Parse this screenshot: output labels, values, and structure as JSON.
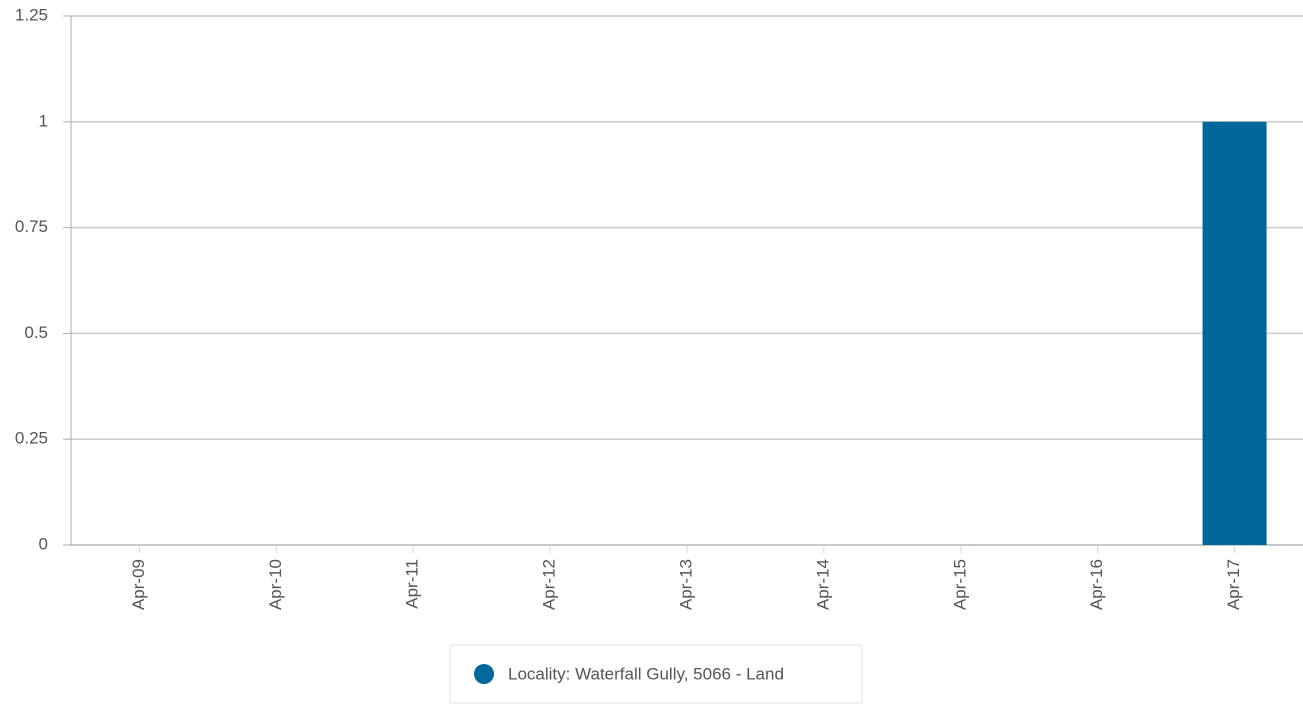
{
  "chart_data": {
    "type": "bar",
    "categories": [
      "Apr-09",
      "Apr-10",
      "Apr-11",
      "Apr-12",
      "Apr-13",
      "Apr-14",
      "Apr-15",
      "Apr-16",
      "Apr-17"
    ],
    "series": [
      {
        "name": "Locality: Waterfall Gully, 5066 - Land",
        "color": "#00679a",
        "values": [
          0,
          0,
          0,
          0,
          0,
          0,
          0,
          0,
          1
        ]
      }
    ],
    "ylim": [
      0,
      1.25
    ],
    "yticks": [
      0,
      0.25,
      0.5,
      0.75,
      1,
      1.25
    ],
    "grid": true,
    "legend": "bottom"
  }
}
